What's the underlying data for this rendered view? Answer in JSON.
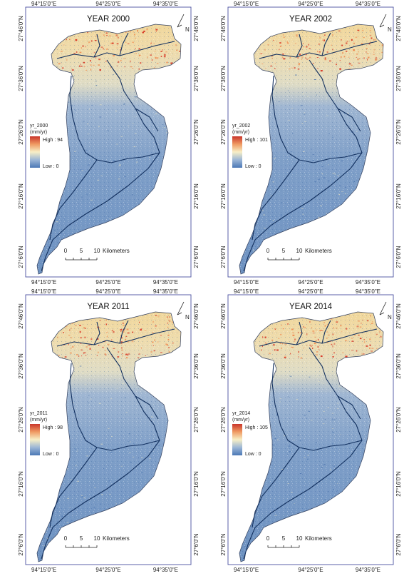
{
  "figure": {
    "panels": [
      {
        "id": "2000",
        "title": "YEAR 2000",
        "legend_title": "yr_2000",
        "legend_unit": "(mm/yr)",
        "high": "High : 94",
        "low": "Low : 0"
      },
      {
        "id": "2002",
        "title": "YEAR 2002",
        "legend_title": "yr_2002",
        "legend_unit": "(mm/yr)",
        "high": "High : 101",
        "low": "Low : 0"
      },
      {
        "id": "2011",
        "title": "YEAR 2011",
        "legend_title": "yr_2011",
        "legend_unit": "(mm/yr)",
        "high": "High : 98",
        "low": "Low : 0"
      },
      {
        "id": "2014",
        "title": "YEAR 2014",
        "legend_title": "yr_2014",
        "legend_unit": "(mm/yr)",
        "high": "High : 105",
        "low": "Low : 0"
      }
    ],
    "lon_ticks": [
      "94°15'0\"E",
      "94°25'0\"E",
      "94°35'0\"E"
    ],
    "lat_ticks": [
      "27°46'0\"N",
      "27°36'0\"N",
      "27°26'0\"N",
      "27°16'0\"N",
      "27°6'0\"N"
    ],
    "north_label": "N",
    "scalebar": {
      "labels": [
        "0",
        "5",
        "10"
      ],
      "unit": "Kilometers"
    },
    "colors": {
      "high": "#d7301f",
      "mid": "#f7efc6",
      "low": "#4b78b5",
      "river": "#12305f",
      "frame": "#4a4fa0"
    }
  }
}
